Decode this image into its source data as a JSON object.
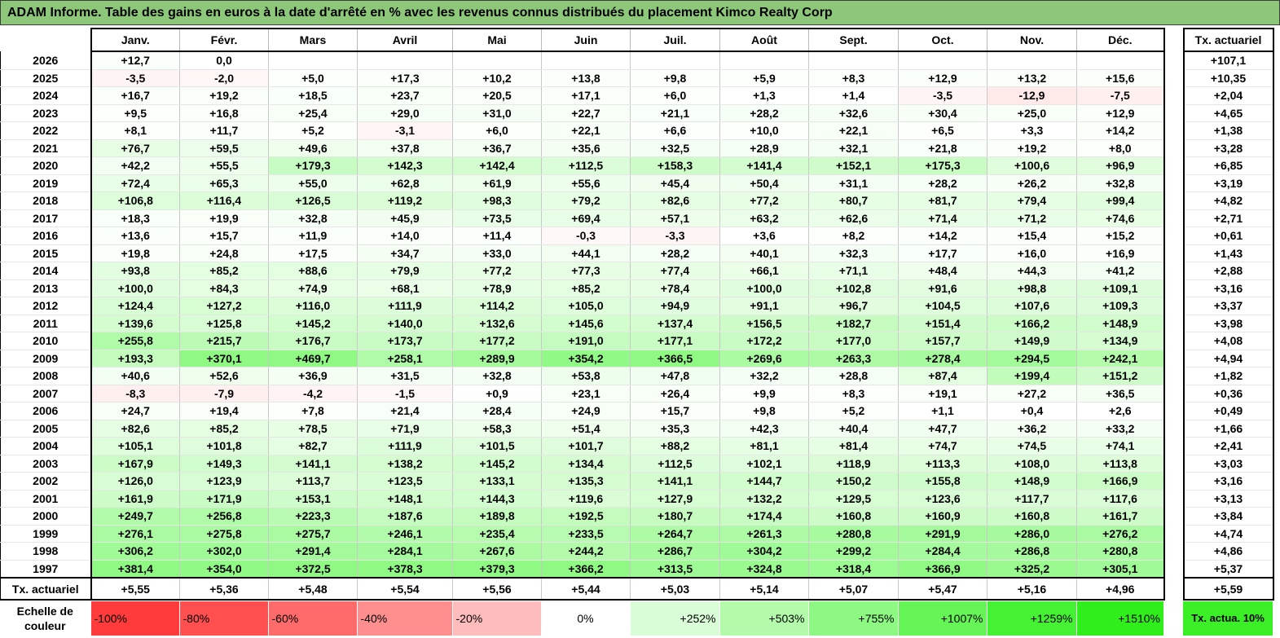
{
  "title": "ADAM Informe. Table des gains en euros à la date d'arrêté en % avec les revenus connus distribués du placement Kimco Realty Corp",
  "months": [
    "Janv.",
    "Févr.",
    "Mars",
    "Avril",
    "Mai",
    "Juin",
    "Juil.",
    "Août",
    "Sept.",
    "Oct.",
    "Nov.",
    "Déc."
  ],
  "actuarial_header": "Tx. actuariel",
  "rows": [
    {
      "year": "2026",
      "values": [
        "+12,7",
        "0,0",
        "",
        "",
        "",
        "",
        "",
        "",
        "",
        "",
        "",
        ""
      ],
      "rate": "+107,1"
    },
    {
      "year": "2025",
      "values": [
        "-3,5",
        "-2,0",
        "+5,0",
        "+17,3",
        "+10,2",
        "+13,8",
        "+9,8",
        "+5,9",
        "+8,3",
        "+12,9",
        "+13,2",
        "+15,6"
      ],
      "rate": "+10,35"
    },
    {
      "year": "2024",
      "values": [
        "+16,7",
        "+19,2",
        "+18,5",
        "+23,7",
        "+20,5",
        "+17,1",
        "+6,0",
        "+1,3",
        "+1,4",
        "-3,5",
        "-12,9",
        "-7,5"
      ],
      "rate": "+2,04"
    },
    {
      "year": "2023",
      "values": [
        "+9,5",
        "+16,8",
        "+25,4",
        "+29,0",
        "+31,0",
        "+22,7",
        "+21,1",
        "+28,2",
        "+32,6",
        "+30,4",
        "+25,0",
        "+12,9"
      ],
      "rate": "+4,65"
    },
    {
      "year": "2022",
      "values": [
        "+8,1",
        "+11,7",
        "+5,2",
        "-3,1",
        "+6,0",
        "+22,1",
        "+6,6",
        "+10,0",
        "+22,1",
        "+6,5",
        "+3,3",
        "+14,2"
      ],
      "rate": "+1,38"
    },
    {
      "year": "2021",
      "values": [
        "+76,7",
        "+59,5",
        "+49,6",
        "+37,8",
        "+36,7",
        "+35,6",
        "+32,5",
        "+28,9",
        "+32,1",
        "+21,8",
        "+19,2",
        "+8,0"
      ],
      "rate": "+3,28"
    },
    {
      "year": "2020",
      "values": [
        "+42,2",
        "+55,5",
        "+179,3",
        "+142,3",
        "+142,4",
        "+112,5",
        "+158,3",
        "+141,4",
        "+152,1",
        "+175,3",
        "+100,6",
        "+96,9"
      ],
      "rate": "+6,85"
    },
    {
      "year": "2019",
      "values": [
        "+72,4",
        "+65,3",
        "+55,0",
        "+62,8",
        "+61,9",
        "+55,6",
        "+45,4",
        "+50,4",
        "+31,1",
        "+28,2",
        "+26,2",
        "+32,8"
      ],
      "rate": "+3,19"
    },
    {
      "year": "2018",
      "values": [
        "+106,8",
        "+116,4",
        "+126,5",
        "+119,2",
        "+98,3",
        "+79,2",
        "+82,6",
        "+77,2",
        "+80,7",
        "+81,7",
        "+79,4",
        "+99,4"
      ],
      "rate": "+4,82"
    },
    {
      "year": "2017",
      "values": [
        "+18,3",
        "+19,9",
        "+32,8",
        "+45,9",
        "+73,5",
        "+69,4",
        "+57,1",
        "+63,2",
        "+62,6",
        "+71,4",
        "+71,2",
        "+74,6"
      ],
      "rate": "+2,71"
    },
    {
      "year": "2016",
      "values": [
        "+13,6",
        "+15,7",
        "+11,9",
        "+14,0",
        "+11,4",
        "-0,3",
        "-3,3",
        "+3,6",
        "+8,2",
        "+14,2",
        "+15,4",
        "+15,2"
      ],
      "rate": "+0,61"
    },
    {
      "year": "2015",
      "values": [
        "+19,8",
        "+24,8",
        "+17,5",
        "+34,7",
        "+33,0",
        "+44,1",
        "+28,2",
        "+40,1",
        "+32,3",
        "+17,7",
        "+16,0",
        "+16,9"
      ],
      "rate": "+1,43"
    },
    {
      "year": "2014",
      "values": [
        "+93,8",
        "+85,2",
        "+88,6",
        "+79,9",
        "+77,2",
        "+77,3",
        "+77,4",
        "+66,1",
        "+71,1",
        "+48,4",
        "+44,3",
        "+41,2"
      ],
      "rate": "+2,88"
    },
    {
      "year": "2013",
      "values": [
        "+100,0",
        "+84,3",
        "+74,9",
        "+68,1",
        "+78,9",
        "+85,2",
        "+78,4",
        "+100,0",
        "+102,8",
        "+91,6",
        "+98,8",
        "+109,1"
      ],
      "rate": "+3,16"
    },
    {
      "year": "2012",
      "values": [
        "+124,4",
        "+127,2",
        "+116,0",
        "+111,9",
        "+114,2",
        "+105,0",
        "+94,9",
        "+91,1",
        "+96,7",
        "+104,5",
        "+107,6",
        "+109,3"
      ],
      "rate": "+3,37"
    },
    {
      "year": "2011",
      "values": [
        "+139,6",
        "+125,8",
        "+145,2",
        "+140,0",
        "+132,6",
        "+145,6",
        "+137,4",
        "+156,5",
        "+182,7",
        "+151,4",
        "+166,2",
        "+148,9"
      ],
      "rate": "+3,98"
    },
    {
      "year": "2010",
      "values": [
        "+255,8",
        "+215,7",
        "+176,7",
        "+173,7",
        "+177,2",
        "+191,0",
        "+177,1",
        "+172,2",
        "+177,0",
        "+157,7",
        "+149,9",
        "+134,9"
      ],
      "rate": "+4,08"
    },
    {
      "year": "2009",
      "values": [
        "+193,3",
        "+370,1",
        "+469,7",
        "+258,1",
        "+289,9",
        "+354,2",
        "+366,5",
        "+269,6",
        "+263,3",
        "+278,4",
        "+294,5",
        "+242,1"
      ],
      "rate": "+4,94"
    },
    {
      "year": "2008",
      "values": [
        "+40,6",
        "+52,6",
        "+36,9",
        "+31,5",
        "+32,8",
        "+53,8",
        "+47,8",
        "+32,2",
        "+28,8",
        "+87,4",
        "+199,4",
        "+151,2"
      ],
      "rate": "+1,82"
    },
    {
      "year": "2007",
      "values": [
        "-8,3",
        "-7,9",
        "-4,2",
        "-1,5",
        "+0,9",
        "+23,1",
        "+26,4",
        "+9,9",
        "+8,3",
        "+19,1",
        "+27,2",
        "+36,5"
      ],
      "rate": "+0,36"
    },
    {
      "year": "2006",
      "values": [
        "+24,7",
        "+19,4",
        "+7,8",
        "+21,4",
        "+28,4",
        "+24,9",
        "+15,7",
        "+9,8",
        "+5,2",
        "+1,1",
        "+0,4",
        "+2,6"
      ],
      "rate": "+0,49"
    },
    {
      "year": "2005",
      "values": [
        "+82,6",
        "+85,2",
        "+78,5",
        "+71,9",
        "+58,3",
        "+51,4",
        "+35,3",
        "+42,3",
        "+40,4",
        "+47,7",
        "+36,2",
        "+33,2"
      ],
      "rate": "+1,66"
    },
    {
      "year": "2004",
      "values": [
        "+105,1",
        "+101,8",
        "+82,7",
        "+111,9",
        "+101,5",
        "+101,7",
        "+88,2",
        "+81,1",
        "+81,4",
        "+74,7",
        "+74,5",
        "+74,1"
      ],
      "rate": "+2,41"
    },
    {
      "year": "2003",
      "values": [
        "+167,9",
        "+149,3",
        "+141,1",
        "+138,2",
        "+145,2",
        "+134,4",
        "+112,5",
        "+102,1",
        "+118,9",
        "+113,3",
        "+108,0",
        "+113,8"
      ],
      "rate": "+3,03"
    },
    {
      "year": "2002",
      "values": [
        "+126,0",
        "+123,9",
        "+113,7",
        "+123,5",
        "+133,1",
        "+135,3",
        "+141,1",
        "+144,7",
        "+150,2",
        "+155,8",
        "+148,9",
        "+166,9"
      ],
      "rate": "+3,16"
    },
    {
      "year": "2001",
      "values": [
        "+161,9",
        "+171,9",
        "+153,1",
        "+148,1",
        "+144,3",
        "+119,6",
        "+127,9",
        "+132,2",
        "+129,5",
        "+123,6",
        "+117,7",
        "+117,6"
      ],
      "rate": "+3,13"
    },
    {
      "year": "2000",
      "values": [
        "+249,7",
        "+256,8",
        "+223,3",
        "+187,6",
        "+189,8",
        "+192,5",
        "+180,7",
        "+174,4",
        "+160,8",
        "+160,9",
        "+160,8",
        "+161,7"
      ],
      "rate": "+3,84"
    },
    {
      "year": "1999",
      "values": [
        "+276,1",
        "+275,8",
        "+275,7",
        "+246,1",
        "+235,4",
        "+233,5",
        "+264,7",
        "+261,3",
        "+280,8",
        "+291,9",
        "+286,0",
        "+276,2"
      ],
      "rate": "+4,74"
    },
    {
      "year": "1998",
      "values": [
        "+306,2",
        "+302,0",
        "+291,4",
        "+284,1",
        "+267,6",
        "+244,2",
        "+286,7",
        "+304,2",
        "+299,2",
        "+284,4",
        "+286,8",
        "+280,8"
      ],
      "rate": "+4,86"
    },
    {
      "year": "1997",
      "values": [
        "+381,4",
        "+354,0",
        "+372,5",
        "+378,3",
        "+379,3",
        "+366,2",
        "+313,5",
        "+324,8",
        "+318,4",
        "+366,9",
        "+325,2",
        "+305,1"
      ],
      "rate": "+5,37"
    }
  ],
  "actuarial_row": {
    "label": "Tx. actuariel",
    "values": [
      "+5,55",
      "+5,36",
      "+5,48",
      "+5,54",
      "+5,56",
      "+5,44",
      "+5,03",
      "+5,14",
      "+5,07",
      "+5,47",
      "+5,16",
      "+4,96"
    ],
    "rate": "+5,59"
  },
  "scale": {
    "label": "Echelle de couleur",
    "items": [
      {
        "text": "-100%",
        "color": "#ff3b3b"
      },
      {
        "text": "-80%",
        "color": "#ff4f4f"
      },
      {
        "text": "-60%",
        "color": "#ff6a6a"
      },
      {
        "text": "-40%",
        "color": "#ff8f8f"
      },
      {
        "text": "-20%",
        "color": "#ffbcbc"
      },
      {
        "text": "0%",
        "color": "#ffffff"
      },
      {
        "text": "+252%",
        "color": "#d9fdd6"
      },
      {
        "text": "+503%",
        "color": "#b3fbab"
      },
      {
        "text": "+755%",
        "color": "#8ef982"
      },
      {
        "text": "+1007%",
        "color": "#66f556"
      },
      {
        "text": "+1259%",
        "color": "#45f133"
      },
      {
        "text": "+1510%",
        "color": "#2fee1c"
      }
    ],
    "actuarial_legend": "Tx. actua. 10%",
    "actuarial_legend_color": "#3aef26"
  },
  "colors": {
    "title_bg": "#8dc87a",
    "negative": "#ff0000",
    "positive_max": "#2fee1c"
  }
}
